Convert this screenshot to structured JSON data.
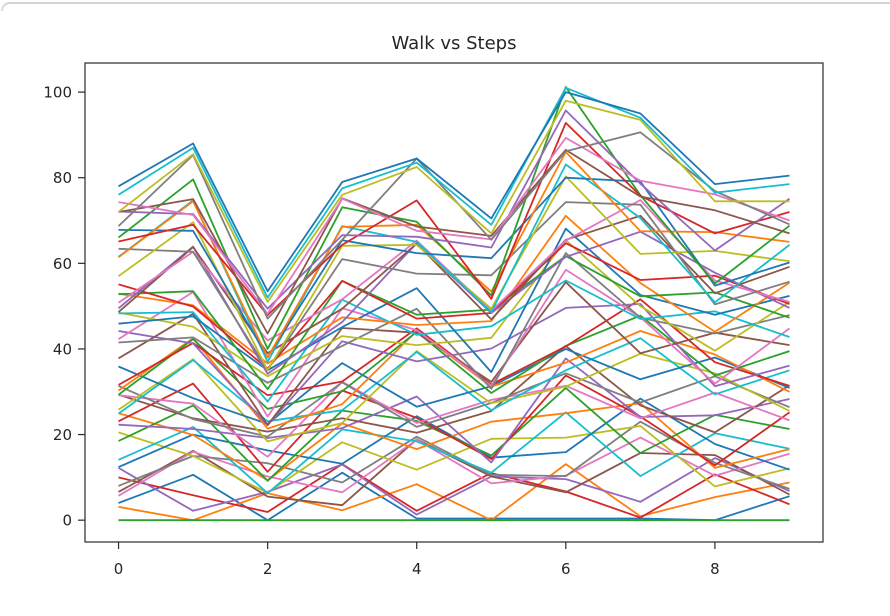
{
  "window": {
    "top_edge_color": "#d4d4d4",
    "background": "#ffffff"
  },
  "style": {
    "text_color": "#262626",
    "spine_color": "#2a2a2a",
    "line_width": 1.8
  },
  "chart_data": {
    "type": "line",
    "title": "Walk vs Steps",
    "xlabel": "",
    "ylabel": "",
    "grid": false,
    "legend": "none",
    "x": [
      0,
      1,
      2,
      3,
      4,
      5,
      6,
      7,
      8,
      9
    ],
    "xlim": [
      -0.45,
      9.45
    ],
    "ylim": [
      -5.1,
      106.8
    ],
    "xticks": [
      0,
      2,
      4,
      6,
      8
    ],
    "yticks": [
      0,
      20,
      40,
      60,
      80,
      100
    ],
    "palette": [
      "#1f77b4",
      "#ff7f0e",
      "#2ca02c",
      "#d62728",
      "#9467bd",
      "#8c564b",
      "#e377c2",
      "#7f7f7f",
      "#bcbd22",
      "#17becf"
    ],
    "series": [
      {
        "color": "#1f77b4",
        "values": [
          4,
          10.6,
          0,
          11.1,
          0.4,
          0.4,
          0.4,
          0.4,
          0,
          5.6
        ]
      },
      {
        "color": "#ff7f0e",
        "values": [
          3.1,
          0,
          6.3,
          2.3,
          8.4,
          0,
          13.1,
          0.9,
          5.4,
          8.8
        ]
      },
      {
        "color": "#2ca02c",
        "values": [
          0,
          0,
          0,
          0,
          0,
          0,
          0,
          0,
          0,
          0
        ]
      },
      {
        "color": "#d62728",
        "values": [
          10,
          5.8,
          1.9,
          13.1,
          2.2,
          11,
          6.7,
          0.6,
          10.7,
          3.7
        ]
      },
      {
        "color": "#9467bd",
        "values": [
          12.2,
          2.2,
          6.6,
          13,
          1.3,
          10.2,
          9.6,
          4.3,
          14.5,
          6.8
        ]
      },
      {
        "color": "#8c564b",
        "values": [
          6.6,
          16.2,
          5.5,
          3.5,
          18.9,
          10.2,
          6.5,
          15.7,
          15.2,
          6
        ]
      },
      {
        "color": "#e377c2",
        "values": [
          5.7,
          16,
          10.2,
          6.5,
          18.8,
          8.6,
          10.4,
          19.3,
          10.4,
          15.5
        ]
      },
      {
        "color": "#7f7f7f",
        "values": [
          8,
          15,
          13.3,
          8.8,
          19.5,
          10.6,
          10.3,
          23,
          13.4,
          7.3
        ]
      },
      {
        "color": "#bcbd22",
        "values": [
          20.5,
          15,
          6.4,
          18.2,
          11.8,
          19,
          19.3,
          22,
          7.9,
          12.1
        ]
      },
      {
        "color": "#17becf",
        "values": [
          14.1,
          21.8,
          6.3,
          21.2,
          18.4,
          11.1,
          25.2,
          10.3,
          20.3,
          16.7
        ]
      },
      {
        "color": "#1f77b4",
        "values": [
          12.4,
          20,
          16.3,
          13.2,
          24.3,
          14.6,
          15.9,
          28.4,
          17.8,
          11.8
        ]
      },
      {
        "color": "#ff7f0e",
        "values": [
          25,
          19.9,
          9.3,
          22.6,
          16.6,
          23,
          25,
          27.3,
          12.2,
          16.6
        ]
      },
      {
        "color": "#2ca02c",
        "values": [
          18.5,
          26.8,
          9.2,
          25.6,
          23.2,
          15.1,
          30.9,
          15.7,
          24.6,
          21.3
        ]
      },
      {
        "color": "#d62728",
        "values": [
          23.1,
          31.9,
          11.3,
          30.3,
          23.9,
          14.3,
          33.8,
          24.2,
          12.8,
          25.2
        ]
      },
      {
        "color": "#9467bd",
        "values": [
          22.3,
          21.3,
          19.2,
          21.5,
          28.9,
          13.5,
          37.8,
          24.1,
          24.5,
          28.3
        ]
      },
      {
        "color": "#8c564b",
        "values": [
          29.3,
          23.8,
          20.7,
          23.8,
          20.4,
          25.5,
          40.7,
          26.8,
          20.5,
          31.5
        ]
      },
      {
        "color": "#e377c2",
        "values": [
          29.2,
          27.2,
          14.8,
          32.3,
          22.7,
          28.1,
          31.4,
          23.8,
          29.8,
          23.3
        ]
      },
      {
        "color": "#7f7f7f",
        "values": [
          31.4,
          23.6,
          19.5,
          32.2,
          21.8,
          27.4,
          34.3,
          27.5,
          33.6,
          26.4
        ]
      },
      {
        "color": "#bcbd22",
        "values": [
          25.8,
          37.6,
          18.4,
          22.7,
          39.5,
          27.3,
          31.2,
          38.9,
          34.3,
          25.5
        ]
      },
      {
        "color": "#17becf",
        "values": [
          24.9,
          37.4,
          23.1,
          25.7,
          39.3,
          25.7,
          35,
          42.5,
          29.4,
          35
        ]
      },
      {
        "color": "#1f77b4",
        "values": [
          35.9,
          28.5,
          22.5,
          36.7,
          26.5,
          31.3,
          40,
          32.9,
          38,
          30.9
        ]
      },
      {
        "color": "#ff7f0e",
        "values": [
          30.3,
          42.5,
          21.4,
          27.1,
          44.2,
          31.2,
          36.8,
          44.2,
          38.7,
          30
        ]
      },
      {
        "color": "#2ca02c",
        "values": [
          29.3,
          42.3,
          26,
          30.1,
          44,
          29.7,
          40.7,
          47.8,
          33.8,
          39.5
        ]
      },
      {
        "color": "#d62728",
        "values": [
          31.6,
          41.4,
          29.2,
          32.4,
          44.8,
          31.7,
          40.6,
          51.6,
          36.9,
          31.4
        ]
      },
      {
        "color": "#9467bd",
        "values": [
          44.2,
          41.3,
          22.2,
          41.8,
          37.1,
          40.1,
          49.6,
          50.5,
          31.3,
          36.1
        ]
      },
      {
        "color": "#8c564b",
        "values": [
          37.8,
          48.2,
          22.2,
          44.9,
          43.8,
          32.3,
          55.6,
          39,
          43.8,
          40.9
        ]
      },
      {
        "color": "#e377c2",
        "values": [
          42.3,
          53.3,
          24.2,
          49.5,
          44.4,
          31.4,
          58.5,
          47.4,
          31.9,
          44.8
        ]
      },
      {
        "color": "#7f7f7f",
        "values": [
          41.5,
          42.7,
          32.1,
          40.7,
          49.4,
          30.7,
          62.4,
          47.3,
          43.6,
          47.9
        ]
      },
      {
        "color": "#bcbd22",
        "values": [
          48.5,
          45.2,
          33.6,
          43,
          40.9,
          42.6,
          65.4,
          50,
          39.6,
          51
        ]
      },
      {
        "color": "#17becf",
        "values": [
          48.3,
          48.6,
          27.7,
          51.5,
          43.3,
          45.3,
          56,
          47,
          48.8,
          42.8
        ]
      },
      {
        "color": "#1f77b4",
        "values": [
          45.9,
          47.6,
          35,
          45.1,
          54.2,
          34.6,
          68.1,
          52.6,
          48,
          52.4
        ]
      },
      {
        "color": "#ff7f0e",
        "values": [
          52.9,
          50.2,
          36.6,
          47.4,
          45.6,
          46.5,
          71.1,
          55.4,
          44,
          55.5
        ]
      },
      {
        "color": "#2ca02c",
        "values": [
          52.8,
          53.5,
          30.6,
          55.9,
          48,
          49.2,
          61.7,
          52.3,
          53.2,
          47.3
        ]
      },
      {
        "color": "#d62728",
        "values": [
          55.1,
          49.9,
          35.4,
          55.9,
          47.1,
          48.4,
          64.7,
          56.1,
          57.1,
          50.5
        ]
      },
      {
        "color": "#9467bd",
        "values": [
          49.5,
          63.9,
          34.2,
          46.3,
          64.7,
          48.4,
          61.5,
          67.4,
          57.8,
          49.6
        ]
      },
      {
        "color": "#8c564b",
        "values": [
          48.6,
          63.8,
          39,
          49.4,
          64.6,
          46.9,
          65.5,
          71.1,
          53,
          59.2
        ]
      },
      {
        "color": "#e377c2",
        "values": [
          50.8,
          62.7,
          42,
          51.6,
          65.3,
          48.9,
          65.3,
          74.8,
          56,
          51
        ]
      },
      {
        "color": "#7f7f7f",
        "values": [
          63.4,
          62.7,
          35.1,
          61,
          57.6,
          57.2,
          74.3,
          73.7,
          50.4,
          55.7
        ]
      },
      {
        "color": "#bcbd22",
        "values": [
          57,
          69.6,
          35,
          64.1,
          64.3,
          49.4,
          80.3,
          62.2,
          62.9,
          60.5
        ]
      },
      {
        "color": "#17becf",
        "values": [
          61.5,
          74.7,
          37,
          68.7,
          65,
          48.6,
          83.1,
          70.6,
          50.9,
          64.3
        ]
      },
      {
        "color": "#1f77b4",
        "values": [
          67.8,
          67.6,
          38.1,
          65.4,
          62.4,
          61.2,
          80,
          79.1,
          54.8,
          60.2
        ]
      },
      {
        "color": "#ff7f0e",
        "values": [
          61.4,
          74.5,
          38,
          68.5,
          69,
          53.4,
          86,
          67.5,
          67.3,
          65
        ]
      },
      {
        "color": "#2ca02c",
        "values": [
          66,
          79.6,
          40,
          73.1,
          69.7,
          52.5,
          101.2,
          75.9,
          55.3,
          68.8
        ]
      },
      {
        "color": "#d62728",
        "values": [
          65.1,
          69,
          47.9,
          64.3,
          74.7,
          51.7,
          92.8,
          75.8,
          67,
          72
        ]
      },
      {
        "color": "#9467bd",
        "values": [
          72.1,
          71.5,
          49.4,
          66.6,
          66.2,
          63.7,
          95.7,
          78.6,
          63,
          75.1
        ]
      },
      {
        "color": "#8c564b",
        "values": [
          72,
          75,
          43.6,
          75.2,
          68.6,
          66.4,
          86.5,
          75.6,
          72.4,
          67
        ]
      },
      {
        "color": "#e377c2",
        "values": [
          74.3,
          71.3,
          48.2,
          75.1,
          67.6,
          65.6,
          89.3,
          79.3,
          76.1,
          70
        ]
      },
      {
        "color": "#7f7f7f",
        "values": [
          68.7,
          85.3,
          47.1,
          65.5,
          84.5,
          65.5,
          86.2,
          90.6,
          76.9,
          69.1
        ]
      },
      {
        "color": "#bcbd22",
        "values": [
          72,
          85.5,
          51,
          76,
          82.5,
          67,
          98,
          93.5,
          74.5,
          74.5
        ]
      },
      {
        "color": "#17becf",
        "values": [
          76,
          87,
          52,
          77.5,
          83.5,
          69,
          101,
          94,
          76.5,
          78.5
        ]
      },
      {
        "color": "#1f77b4",
        "values": [
          78,
          88,
          53.5,
          79,
          84.5,
          70.5,
          100,
          95,
          78.5,
          80.5
        ]
      }
    ]
  }
}
